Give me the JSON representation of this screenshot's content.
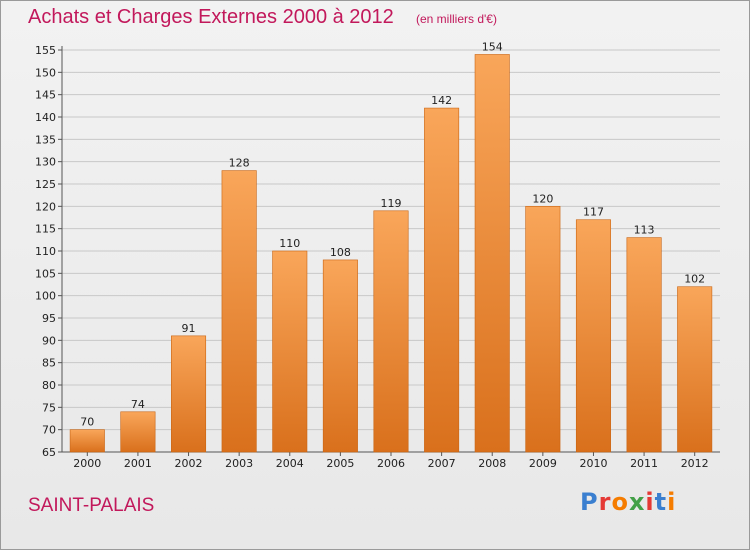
{
  "title": "Achats et Charges Externes 2000 à 2012",
  "subtitle": "(en milliers d'€)",
  "location": "SAINT-PALAIS",
  "logo": {
    "text": "Proxiti",
    "letter_colors": [
      "#3a7fd0",
      "#e53935",
      "#f57c00",
      "#43a047",
      "#e53935",
      "#3a7fd0",
      "#f57c00"
    ]
  },
  "colors": {
    "bar_top": "#f9a65a",
    "bar_bottom": "#d9701c",
    "bar_stroke": "#c96412",
    "grid": "#c8c8c8",
    "title": "#c2185b"
  },
  "chart_data": {
    "type": "bar",
    "title": "Achats et Charges Externes 2000 à 2012",
    "subtitle": "(en milliers d'€)",
    "categories": [
      "2000",
      "2001",
      "2002",
      "2003",
      "2004",
      "2005",
      "2006",
      "2007",
      "2008",
      "2009",
      "2010",
      "2011",
      "2012"
    ],
    "values": [
      70,
      74,
      91,
      128,
      110,
      108,
      119,
      142,
      154,
      120,
      117,
      113,
      102
    ],
    "ylim": [
      65,
      155
    ],
    "yticks": [
      65,
      70,
      75,
      80,
      85,
      90,
      95,
      100,
      105,
      110,
      115,
      120,
      125,
      130,
      135,
      140,
      145,
      150,
      155
    ],
    "xlabel": "",
    "ylabel": "",
    "grid": true
  }
}
